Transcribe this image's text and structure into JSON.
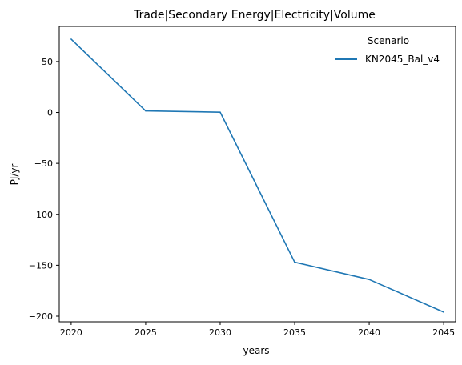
{
  "chart_data": {
    "type": "line",
    "title": "Trade|Secondary Energy|Electricity|Volume",
    "xlabel": "years",
    "ylabel": "PJ/yr",
    "x": [
      2020,
      2025,
      2030,
      2035,
      2040,
      2045
    ],
    "xticks": [
      "2020",
      "2025",
      "2030",
      "2035",
      "2040",
      "2045"
    ],
    "yticks": [
      "50",
      "0",
      "−50",
      "−100",
      "−150",
      "−200"
    ],
    "ytick_values": [
      50,
      0,
      -50,
      -100,
      -150,
      -200
    ],
    "xlim": [
      2019.2,
      2045.8
    ],
    "ylim": [
      -205.5,
      84.5
    ],
    "grid": false,
    "legend": {
      "title": "Scenario",
      "placement": "upper-right"
    },
    "series": [
      {
        "name": "KN2045_Bal_v4",
        "color": "#1f77b4",
        "values": [
          72,
          1.5,
          0.3,
          -147,
          -164,
          -196
        ]
      }
    ]
  }
}
